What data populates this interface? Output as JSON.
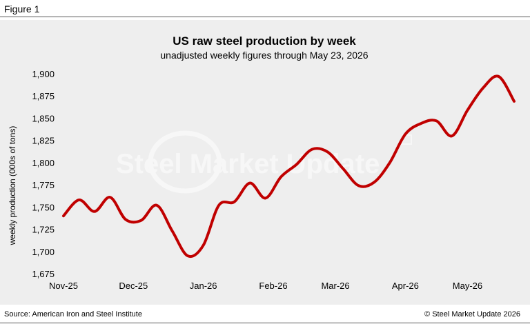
{
  "figure_label": "Figure 1",
  "source": "Source: American Iron and Steel Institute",
  "copyright": "© Steel Market Update 2026",
  "watermark": "Steel Market Update",
  "colors": {
    "line": "#c00000",
    "panel": "#eeeeee",
    "axis_text": "#000000"
  },
  "chart_data": {
    "type": "line",
    "title": "US raw steel production by week",
    "subtitle": "unadjusted weekly figures through May 23, 2026",
    "xlabel": "",
    "ylabel": "weekly production (000s of tons)",
    "ylim": [
      1675,
      1900
    ],
    "yticks": [
      1675,
      1700,
      1725,
      1750,
      1775,
      1800,
      1825,
      1850,
      1875,
      1900
    ],
    "ytick_labels": [
      "1,675",
      "1,700",
      "1,725",
      "1,750",
      "1,775",
      "1,800",
      "1,825",
      "1,850",
      "1,875",
      "1,900"
    ],
    "xtick_labels": [
      "Nov-25",
      "Dec-25",
      "Jan-26",
      "Feb-26",
      "Mar-26",
      "Apr-26",
      "May-26"
    ],
    "xtick_positions": [
      0,
      4.5,
      9,
      13.5,
      17.5,
      22,
      26
    ],
    "grid": false,
    "legend": "none",
    "series": [
      {
        "x": [
          0,
          1,
          2,
          3,
          4,
          5,
          6,
          7,
          8,
          9,
          10,
          11,
          12,
          13,
          14,
          15,
          16,
          17,
          18,
          19,
          20,
          21,
          22,
          23,
          24,
          25,
          26,
          27,
          28,
          29
        ],
        "values": [
          1740,
          1758,
          1745,
          1761,
          1736,
          1735,
          1752,
          1723,
          1695,
          1707,
          1752,
          1756,
          1777,
          1760,
          1784,
          1798,
          1815,
          1812,
          1793,
          1774,
          1778,
          1800,
          1832,
          1844,
          1847,
          1830,
          1859,
          1884,
          1897,
          1869
        ]
      }
    ]
  }
}
